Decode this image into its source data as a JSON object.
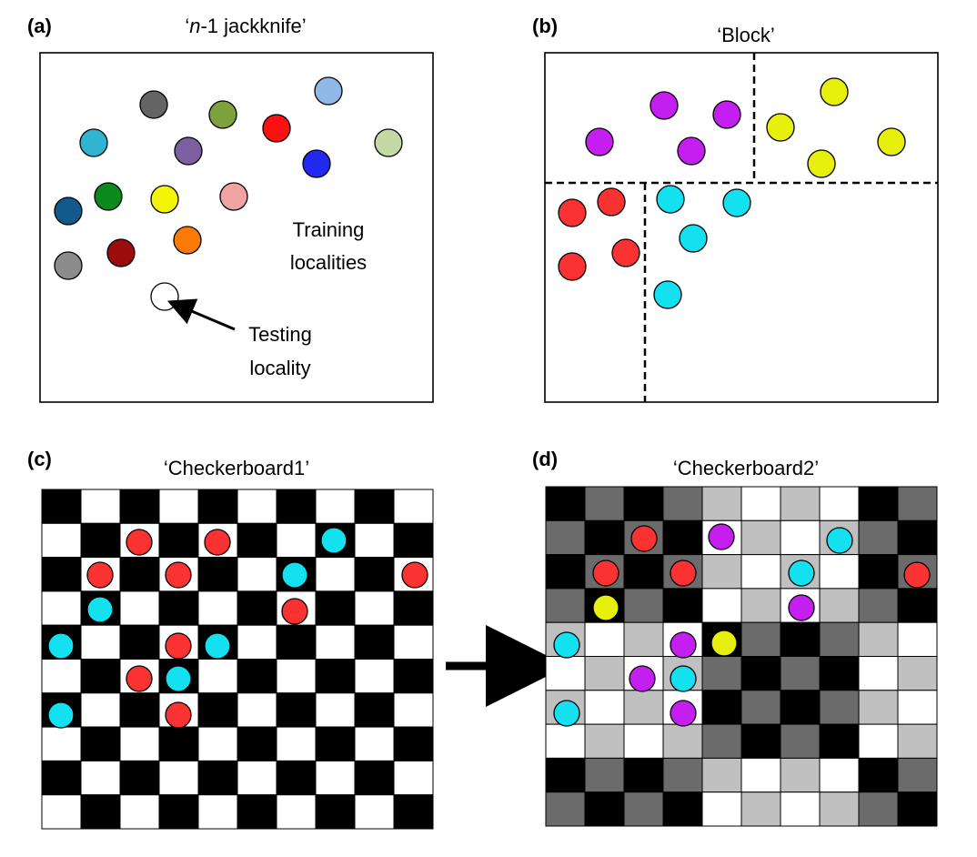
{
  "panels": {
    "a": {
      "label": "(a)",
      "title_italic": "n",
      "title_rest": "-1 jackknife’",
      "title_open": "‘",
      "annotation_training_line1": "Training",
      "annotation_training_line2": "localities",
      "annotation_testing_line1": "Testing",
      "annotation_testing_line2": "locality",
      "colors": [
        "#646464",
        "#7da13c",
        "#8fb8e6",
        "#2fb5d1",
        "#7b5fa0",
        "#ff1010",
        "#2128f0",
        "#c5d9a5",
        "#125a8c",
        "#0b8a1c",
        "#f5f50a",
        "#f0a3a3",
        "#fa7a05",
        "#8c8c8c",
        "#9b0d0d",
        "#ffffff"
      ]
    },
    "b": {
      "label": "(b)",
      "title": "‘Block’",
      "colors": {
        "purple": "#c51ef0",
        "yellow": "#e6f00c",
        "red": "#fa3232",
        "cyan": "#14e1f0"
      }
    },
    "c": {
      "label": "(c)",
      "title": "‘Checkerboard1’"
    },
    "d": {
      "label": "(d)",
      "title": "‘Checkerboard2’",
      "shades": [
        "#000000",
        "#6b6b6b",
        "#c0c0c0",
        "#ffffff"
      ]
    }
  }
}
